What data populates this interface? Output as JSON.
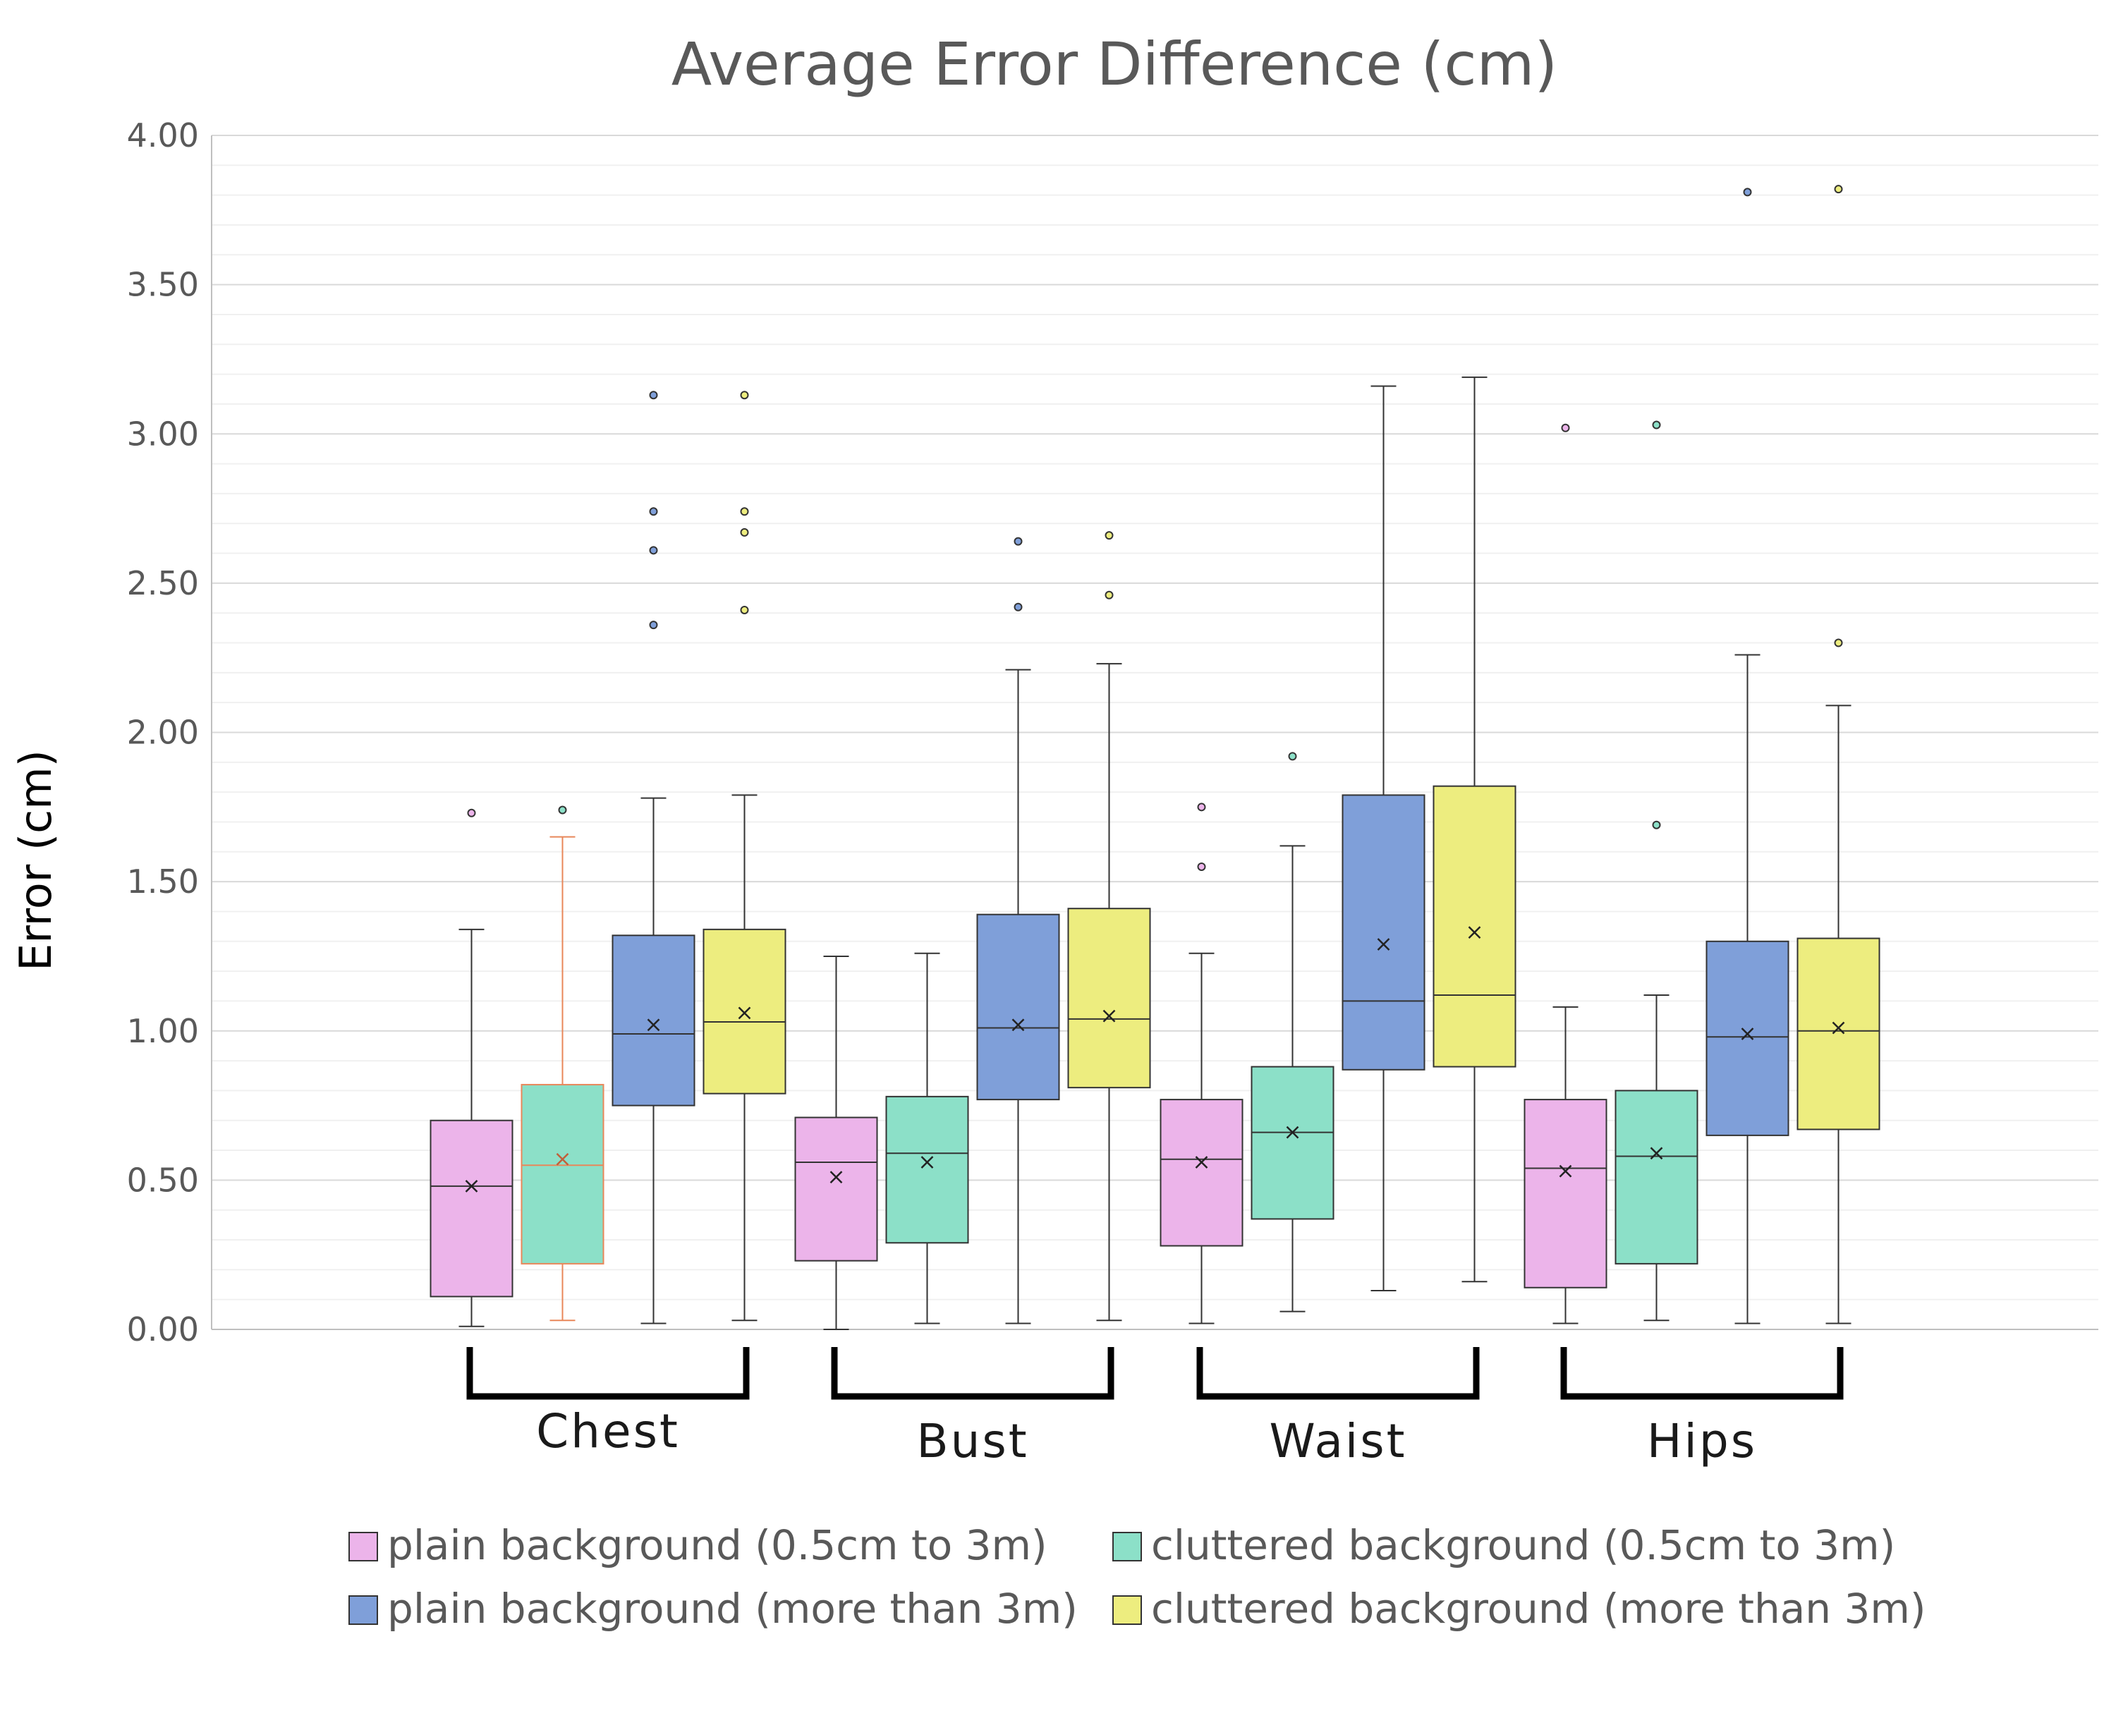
{
  "chart_data": {
    "type": "box",
    "title": "Average Error Difference (cm)",
    "ylabel": "Error (cm)",
    "xlabel": "",
    "ylim": [
      0,
      4
    ],
    "yticks": [
      "0.00",
      "0.50",
      "1.00",
      "1.50",
      "2.00",
      "2.50",
      "3.00",
      "3.50",
      "4.00"
    ],
    "grid": true,
    "legend_position": "bottom",
    "categories": [
      "Chest",
      "Bust",
      "Waist",
      "Hips"
    ],
    "series": [
      {
        "name": "plain background (0.5cm to 3m)",
        "color": "#ecb4ea",
        "stats": [
          {
            "min": 0.01,
            "q1": 0.11,
            "median": 0.48,
            "q3": 0.7,
            "max": 1.34,
            "mean": 0.48,
            "outliers": [
              1.73
            ]
          },
          {
            "min": 0.0,
            "q1": 0.23,
            "median": 0.56,
            "q3": 0.71,
            "max": 1.25,
            "mean": 0.51,
            "outliers": []
          },
          {
            "min": 0.02,
            "q1": 0.28,
            "median": 0.57,
            "q3": 0.77,
            "max": 1.26,
            "mean": 0.56,
            "outliers": [
              1.55,
              1.75
            ]
          },
          {
            "min": 0.02,
            "q1": 0.14,
            "median": 0.54,
            "q3": 0.77,
            "max": 1.08,
            "mean": 0.53,
            "outliers": [
              3.02
            ]
          }
        ]
      },
      {
        "name": "cluttered background (0.5cm to 3m)",
        "color": "#8ce0c8",
        "stats": [
          {
            "min": 0.03,
            "q1": 0.22,
            "median": 0.55,
            "q3": 0.82,
            "max": 1.65,
            "mean": 0.57,
            "outliers": [
              1.74
            ]
          },
          {
            "min": 0.02,
            "q1": 0.29,
            "median": 0.59,
            "q3": 0.78,
            "max": 1.26,
            "mean": 0.56,
            "outliers": []
          },
          {
            "min": 0.06,
            "q1": 0.37,
            "median": 0.66,
            "q3": 0.88,
            "max": 1.62,
            "mean": 0.66,
            "outliers": [
              1.92
            ]
          },
          {
            "min": 0.03,
            "q1": 0.22,
            "median": 0.58,
            "q3": 0.8,
            "max": 1.12,
            "mean": 0.59,
            "outliers": [
              1.69,
              3.03
            ]
          }
        ]
      },
      {
        "name": "plain background (more than 3m)",
        "color": "#7f9fd9",
        "stats": [
          {
            "min": 0.02,
            "q1": 0.75,
            "median": 0.99,
            "q3": 1.32,
            "max": 1.78,
            "mean": 1.02,
            "outliers": [
              2.36,
              2.61,
              2.74,
              3.13
            ]
          },
          {
            "min": 0.02,
            "q1": 0.77,
            "median": 1.01,
            "q3": 1.39,
            "max": 2.21,
            "mean": 1.02,
            "outliers": [
              2.42,
              2.64
            ]
          },
          {
            "min": 0.13,
            "q1": 0.87,
            "median": 1.1,
            "q3": 1.79,
            "max": 3.16,
            "mean": 1.29,
            "outliers": []
          },
          {
            "min": 0.02,
            "q1": 0.65,
            "median": 0.98,
            "q3": 1.3,
            "max": 2.26,
            "mean": 0.99,
            "outliers": [
              3.81
            ]
          }
        ]
      },
      {
        "name": "cluttered background (more than 3m)",
        "color": "#eded7f",
        "stats": [
          {
            "min": 0.03,
            "q1": 0.79,
            "median": 1.03,
            "q3": 1.34,
            "max": 1.79,
            "mean": 1.06,
            "outliers": [
              2.41,
              2.67,
              2.74,
              3.13
            ]
          },
          {
            "min": 0.03,
            "q1": 0.81,
            "median": 1.04,
            "q3": 1.41,
            "max": 2.23,
            "mean": 1.05,
            "outliers": [
              2.46,
              2.66
            ]
          },
          {
            "min": 0.16,
            "q1": 0.88,
            "median": 1.12,
            "q3": 1.82,
            "max": 3.19,
            "mean": 1.33,
            "outliers": []
          },
          {
            "min": 0.02,
            "q1": 0.67,
            "median": 1.0,
            "q3": 1.31,
            "max": 2.09,
            "mean": 1.01,
            "outliers": [
              2.3,
              3.82
            ]
          }
        ]
      }
    ]
  }
}
